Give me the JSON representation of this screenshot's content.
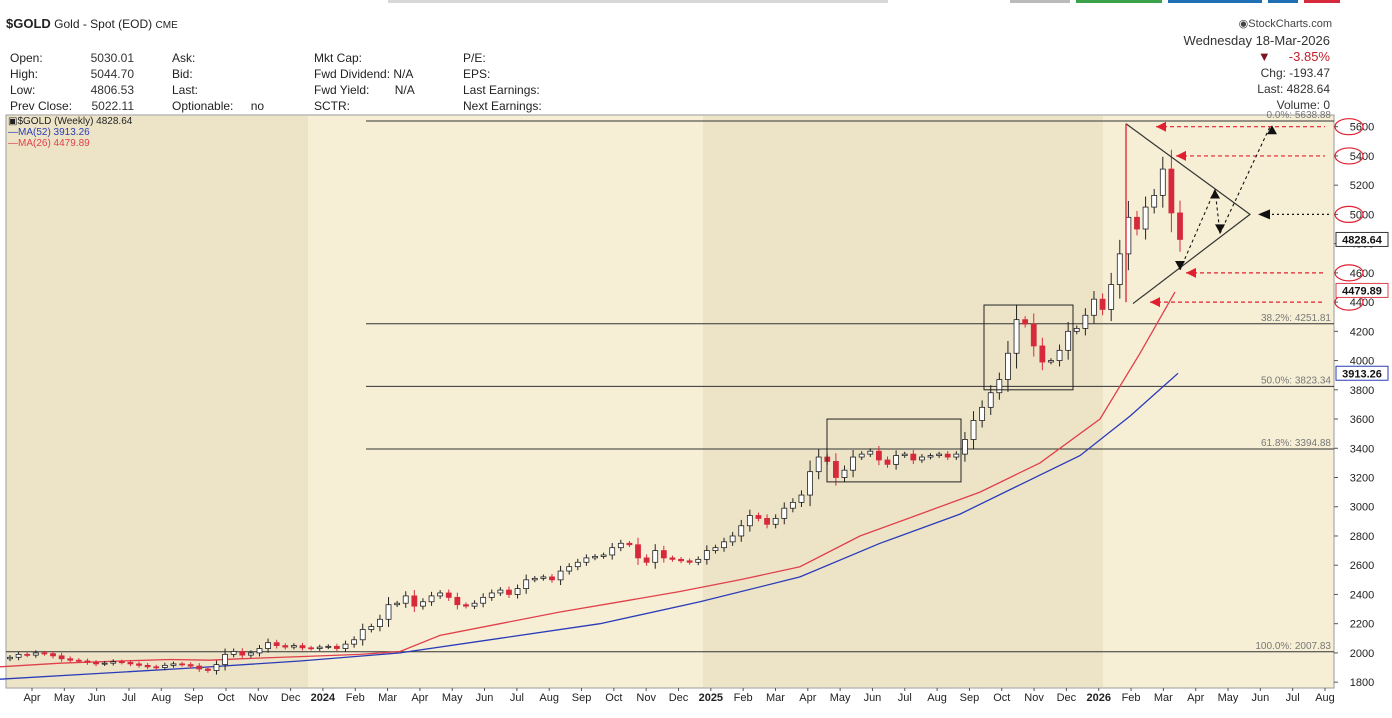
{
  "header": {
    "symbol": "$GOLD",
    "description": "Gold - Spot (EOD)",
    "exchange": "CME",
    "brand": "StockCharts.com",
    "date": "Wednesday  18-Mar-2026",
    "change_pct": "-3.85%",
    "chg": "Chg: -193.47",
    "last": "Last: 4828.64",
    "volume": "Volume: 0",
    "fields": [
      {
        "label": "Open:",
        "value": "5030.01"
      },
      {
        "label": "High:",
        "value": "5044.70"
      },
      {
        "label": "Low:",
        "value": "4806.53"
      },
      {
        "label": "Prev Close:",
        "value": "5022.11"
      }
    ],
    "fields2": [
      {
        "label": "Ask:",
        "value": ""
      },
      {
        "label": "Bid:",
        "value": ""
      },
      {
        "label": "Last:",
        "value": ""
      },
      {
        "label": "Optionable:",
        "value": "no"
      }
    ],
    "fields3": [
      {
        "label": "Mkt Cap:",
        "value": ""
      },
      {
        "label": "Fwd Dividend:",
        "value": "N/A"
      },
      {
        "label": "Fwd Yield:",
        "value": "N/A"
      },
      {
        "label": "SCTR:",
        "value": ""
      }
    ],
    "fields4": [
      {
        "label": "P/E:"
      },
      {
        "label": "EPS:"
      },
      {
        "label": "Last Earnings:"
      },
      {
        "label": "Next Earnings:"
      }
    ]
  },
  "legend": {
    "price": "$GOLD (Weekly) 4828.64",
    "ma52": "MA(52) 3913.26",
    "ma26": "MA(26) 4479.89"
  },
  "colors": {
    "background": "#f6efd6",
    "shade": "#ede4c8",
    "down": "#d62a3c",
    "ma52": "#2a3bb8",
    "ma26": "#e0404a",
    "annotation_red": "#e02030"
  },
  "chart_data": {
    "type": "candlestick",
    "ylim": [
      1760,
      5680
    ],
    "yticks": [
      1800,
      2000,
      2200,
      2400,
      2600,
      2800,
      3000,
      3200,
      3400,
      3600,
      3800,
      4000,
      4200,
      4400,
      4600,
      4800,
      5000,
      5200,
      5400,
      5600
    ],
    "x_month_labels": [
      "Apr",
      "May",
      "Jun",
      "Jul",
      "Aug",
      "Sep",
      "Oct",
      "Nov",
      "Dec",
      "2024",
      "Feb",
      "Mar",
      "Apr",
      "May",
      "Jun",
      "Jul",
      "Aug",
      "Sep",
      "Oct",
      "Nov",
      "Dec",
      "2025",
      "Feb",
      "Mar",
      "Apr",
      "May",
      "Jun",
      "Jul",
      "Aug",
      "Sep",
      "Oct",
      "Nov",
      "Dec",
      "2026",
      "Feb",
      "Mar",
      "Apr",
      "May",
      "Jun",
      "Jul",
      "Aug"
    ],
    "x_month_bold": [
      "2024",
      "2025",
      "2026"
    ],
    "fibonacci": [
      {
        "label": "38.2%: 4251.81",
        "value": 4251.81
      },
      {
        "label": "50.0%: 3823.34",
        "value": 3823.34
      },
      {
        "label": "61.8%: 3394.88",
        "value": 3394.88
      },
      {
        "label": "100.0%: 2007.83",
        "value": 2007.83
      },
      {
        "label": "0.0%: 5638.88",
        "value": 5638.88
      }
    ],
    "last_price_label": "4828.64",
    "ma52_label": "3913.26",
    "ma26_label": "4479.89",
    "circled_levels": [
      "5600",
      "5400",
      "5000",
      "4600",
      "4400"
    ],
    "series_close_weekly": [
      1970,
      1990,
      1985,
      2000,
      1995,
      1980,
      1960,
      1950,
      1945,
      1935,
      1925,
      1930,
      1940,
      1935,
      1925,
      1915,
      1905,
      1900,
      1915,
      1925,
      1920,
      1910,
      1890,
      1880,
      1920,
      1990,
      2010,
      1985,
      2000,
      2030,
      2070,
      2050,
      2040,
      2050,
      2035,
      2030,
      2040,
      2045,
      2030,
      2060,
      2090,
      2160,
      2180,
      2230,
      2330,
      2340,
      2390,
      2320,
      2350,
      2390,
      2410,
      2380,
      2330,
      2320,
      2340,
      2380,
      2410,
      2430,
      2400,
      2440,
      2500,
      2510,
      2520,
      2500,
      2560,
      2590,
      2620,
      2650,
      2660,
      2670,
      2720,
      2750,
      2740,
      2650,
      2620,
      2700,
      2650,
      2640,
      2630,
      2620,
      2640,
      2700,
      2720,
      2760,
      2800,
      2870,
      2940,
      2920,
      2880,
      2920,
      2990,
      3030,
      3080,
      3240,
      3340,
      3310,
      3200,
      3250,
      3340,
      3360,
      3380,
      3320,
      3290,
      3350,
      3360,
      3320,
      3340,
      3350,
      3360,
      3340,
      3360,
      3460,
      3590,
      3680,
      3780,
      3870,
      4050,
      4280,
      4250,
      4100,
      3990,
      4000,
      4070,
      4200,
      4220,
      4310,
      4420,
      4350,
      4520,
      4730,
      4980,
      4900,
      5050,
      5130,
      5310,
      5010,
      4828.64
    ],
    "ma26_points": [
      [
        0,
        1905
      ],
      [
        60,
        1930
      ],
      [
        120,
        1945
      ],
      [
        170,
        1955
      ],
      [
        210,
        1950
      ],
      [
        240,
        1960
      ],
      [
        300,
        1975
      ],
      [
        360,
        1990
      ],
      [
        400,
        2010
      ],
      [
        440,
        2120
      ],
      [
        500,
        2200
      ],
      [
        560,
        2280
      ],
      [
        620,
        2350
      ],
      [
        680,
        2420
      ],
      [
        740,
        2500
      ],
      [
        800,
        2590
      ],
      [
        860,
        2800
      ],
      [
        920,
        2950
      ],
      [
        980,
        3100
      ],
      [
        1040,
        3300
      ],
      [
        1100,
        3600
      ],
      [
        1140,
        4050
      ],
      [
        1175,
        4470
      ]
    ],
    "ma52_points": [
      [
        0,
        1820
      ],
      [
        100,
        1860
      ],
      [
        200,
        1900
      ],
      [
        300,
        1945
      ],
      [
        400,
        2000
      ],
      [
        500,
        2100
      ],
      [
        600,
        2200
      ],
      [
        700,
        2350
      ],
      [
        800,
        2520
      ],
      [
        880,
        2750
      ],
      [
        960,
        2950
      ],
      [
        1020,
        3150
      ],
      [
        1080,
        3350
      ],
      [
        1130,
        3620
      ],
      [
        1178,
        3913.26
      ]
    ]
  }
}
